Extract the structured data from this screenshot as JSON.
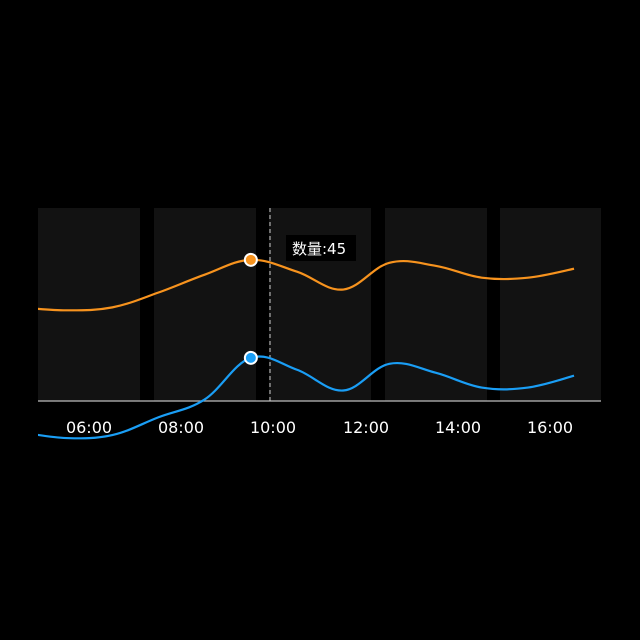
{
  "chart_data": {
    "type": "line",
    "x_labels": [
      "06:00",
      "08:00",
      "10:00",
      "12:00",
      "14:00",
      "16:00"
    ],
    "x": [
      "05:00",
      "06:00",
      "07:00",
      "08:00",
      "09:00",
      "10:00",
      "11:00",
      "12:00",
      "13:00",
      "14:00",
      "15:00",
      "16:00",
      "17:00"
    ],
    "series": [
      {
        "color": "#f7931e",
        "values": [
          62,
          61,
          62,
          67,
          73,
          78,
          74,
          68,
          77,
          76,
          72,
          72,
          75
        ]
      },
      {
        "color": "#1a9ef5",
        "values": [
          20,
          18,
          19,
          25,
          31,
          45,
          41,
          34,
          43,
          40,
          35,
          35,
          39
        ]
      }
    ],
    "highlight": {
      "x": "10:00",
      "tooltip": "数量:45"
    },
    "ylim": [
      0,
      100
    ],
    "grid": false,
    "background_bands": true
  }
}
